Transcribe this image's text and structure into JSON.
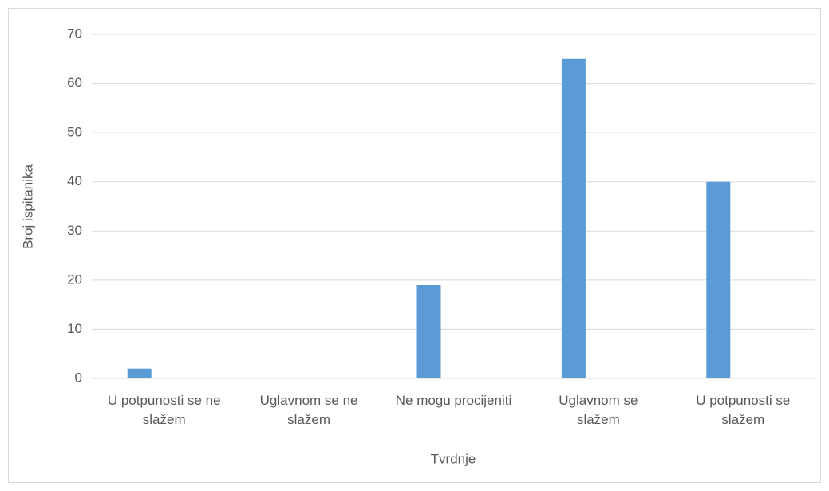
{
  "chart_data": {
    "type": "bar",
    "x_label": "Tvrdnje",
    "y_label": "Broj ispitanika",
    "categories": [
      "U potpunosti se ne slažem",
      "Uglavnom se ne slažem",
      "Ne mogu procijeniti",
      "Uglavnom se slažem",
      "U potpunosti se slažem"
    ],
    "values": [
      2,
      0,
      19,
      65,
      40
    ],
    "color": "#5b9bd5",
    "ylim": [
      0,
      70
    ],
    "yticks": [
      0,
      10,
      20,
      30,
      40,
      50,
      60,
      70
    ],
    "grid": true
  }
}
